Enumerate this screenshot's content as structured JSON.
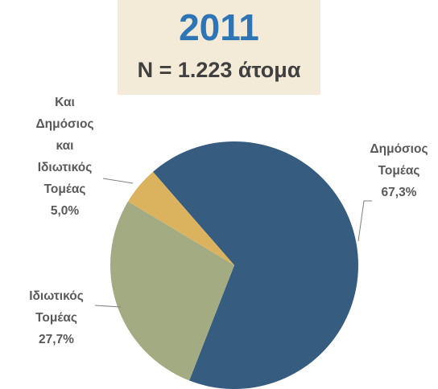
{
  "chart_data": {
    "type": "pie",
    "title": "2011",
    "subtitle": "N = 1.223 άτομα",
    "categories": [
      "Δημόσιος Τομέας",
      "Ιδιωτικός Τομέας",
      "Και Δημόσιος και Ιδιωτικός Τομέας"
    ],
    "values": [
      67.3,
      27.7,
      5.0
    ],
    "value_labels": [
      "67,3%",
      "27,7%",
      "5,0%"
    ],
    "colors": [
      "#365c7f",
      "#a3ab82",
      "#dbb35e"
    ]
  }
}
